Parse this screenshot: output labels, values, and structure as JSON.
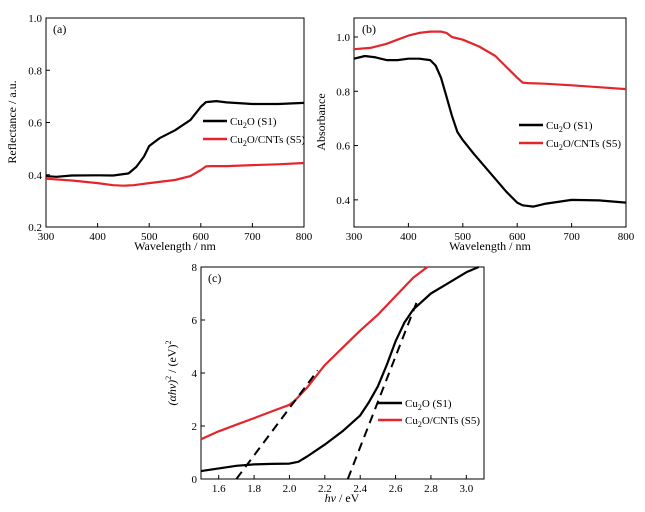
{
  "colors": {
    "black_series": "#000000",
    "red_series": "#e3262c",
    "dash": "#000000"
  },
  "chart_data": [
    {
      "type": "line",
      "panel_tag": "(a)",
      "xlabel": "Wavelength / nm",
      "ylabel": "Reflectance / a.u.",
      "xlim": [
        300,
        800
      ],
      "ylim": [
        0.2,
        1.0
      ],
      "xticks": [
        300,
        400,
        500,
        600,
        700,
        800
      ],
      "yticks": [
        0.2,
        0.4,
        0.6,
        0.8,
        1.0
      ],
      "ytick_labels": [
        "0.2",
        "0.4",
        "0.6",
        "0.8",
        "1.0"
      ],
      "legend_position": "right-middle",
      "series": [
        {
          "name_main": "Cu",
          "name_sub": "2",
          "name_tail": "O (S1)",
          "color": "#000000",
          "x": [
            300,
            320,
            350,
            400,
            430,
            460,
            475,
            490,
            500,
            520,
            550,
            580,
            600,
            610,
            630,
            650,
            700,
            750,
            800
          ],
          "y": [
            0.395,
            0.392,
            0.397,
            0.398,
            0.397,
            0.405,
            0.43,
            0.47,
            0.51,
            0.54,
            0.57,
            0.61,
            0.66,
            0.678,
            0.682,
            0.677,
            0.671,
            0.671,
            0.675
          ]
        },
        {
          "name_main": "Cu",
          "name_sub": "2",
          "name_tail": "O/CNTs (S5)",
          "color": "#e3262c",
          "x": [
            300,
            350,
            400,
            430,
            450,
            470,
            500,
            550,
            580,
            600,
            610,
            620,
            650,
            700,
            750,
            800
          ],
          "y": [
            0.385,
            0.378,
            0.368,
            0.36,
            0.358,
            0.36,
            0.368,
            0.38,
            0.395,
            0.418,
            0.432,
            0.433,
            0.433,
            0.437,
            0.44,
            0.445
          ]
        }
      ]
    },
    {
      "type": "line",
      "panel_tag": "(b)",
      "xlabel": "Wavelength / nm",
      "ylabel": "Absorbance",
      "xlim": [
        300,
        800
      ],
      "ylim": [
        0.3,
        1.07
      ],
      "xticks": [
        300,
        400,
        500,
        600,
        700,
        800
      ],
      "yticks": [
        0.4,
        0.6,
        0.8,
        1.0
      ],
      "ytick_labels": [
        "0.4",
        "0.6",
        "0.8",
        "1.0"
      ],
      "legend_position": "right-middle",
      "series": [
        {
          "name_main": "Cu",
          "name_sub": "2",
          "name_tail": "O (S1)",
          "color": "#000000",
          "x": [
            300,
            320,
            340,
            360,
            380,
            400,
            420,
            440,
            450,
            460,
            470,
            480,
            490,
            500,
            520,
            550,
            580,
            600,
            610,
            630,
            650,
            700,
            750,
            800
          ],
          "y": [
            0.92,
            0.93,
            0.925,
            0.915,
            0.915,
            0.92,
            0.92,
            0.915,
            0.895,
            0.85,
            0.78,
            0.71,
            0.65,
            0.62,
            0.57,
            0.5,
            0.43,
            0.39,
            0.38,
            0.375,
            0.385,
            0.4,
            0.398,
            0.39
          ]
        },
        {
          "name_main": "Cu",
          "name_sub": "2",
          "name_tail": "O/CNTs (S5)",
          "color": "#e3262c",
          "x": [
            300,
            330,
            360,
            380,
            400,
            420,
            440,
            460,
            470,
            480,
            500,
            530,
            560,
            580,
            600,
            610,
            620,
            650,
            700,
            750,
            800
          ],
          "y": [
            0.955,
            0.96,
            0.975,
            0.99,
            1.005,
            1.015,
            1.02,
            1.02,
            1.015,
            1.0,
            0.99,
            0.965,
            0.93,
            0.89,
            0.85,
            0.832,
            0.83,
            0.828,
            0.822,
            0.815,
            0.808
          ]
        }
      ]
    },
    {
      "type": "line",
      "panel_tag": "(c)",
      "xlabel_italic": "hν",
      "xlabel_tail": " / eV",
      "ylabel_main": "(αhν)",
      "ylabel_sup": "2",
      "ylabel_tail": " / (eV)",
      "ylabel_sup2": "2",
      "xlim": [
        1.5,
        3.1
      ],
      "ylim": [
        0,
        8
      ],
      "xticks": [
        1.6,
        1.8,
        2.0,
        2.2,
        2.4,
        2.6,
        2.8,
        3.0
      ],
      "xtick_labels": [
        "1.6",
        "1.8",
        "2.0",
        "2.2",
        "2.4",
        "2.6",
        "2.8",
        "3.0"
      ],
      "yticks": [
        0,
        2,
        4,
        6,
        8
      ],
      "ytick_labels": [
        "0",
        "2",
        "4",
        "6",
        "8"
      ],
      "legend_position": "right-middle",
      "series": [
        {
          "name_main": "Cu",
          "name_sub": "2",
          "name_tail": "O (S1)",
          "color": "#000000",
          "x": [
            1.5,
            1.6,
            1.7,
            1.8,
            1.9,
            2.0,
            2.05,
            2.1,
            2.2,
            2.3,
            2.4,
            2.45,
            2.5,
            2.55,
            2.6,
            2.65,
            2.7,
            2.8,
            2.9,
            3.0,
            3.07
          ],
          "y": [
            0.3,
            0.4,
            0.5,
            0.55,
            0.57,
            0.58,
            0.65,
            0.85,
            1.3,
            1.8,
            2.4,
            2.9,
            3.5,
            4.3,
            5.2,
            5.9,
            6.4,
            7.0,
            7.4,
            7.8,
            8.0
          ]
        },
        {
          "name_main": "Cu",
          "name_sub": "2",
          "name_tail": "O/CNTs (S5)",
          "color": "#e3262c",
          "x": [
            1.5,
            1.6,
            1.7,
            1.8,
            1.9,
            2.0,
            2.03,
            2.1,
            2.2,
            2.3,
            2.4,
            2.5,
            2.6,
            2.7,
            2.78
          ],
          "y": [
            1.5,
            1.8,
            2.05,
            2.3,
            2.55,
            2.8,
            2.95,
            3.45,
            4.3,
            4.95,
            5.6,
            6.2,
            6.9,
            7.6,
            8.0
          ]
        }
      ],
      "tangent_lines": [
        {
          "x": [
            1.7,
            2.16
          ],
          "y": [
            0,
            4.1
          ]
        },
        {
          "x": [
            2.33,
            2.73
          ],
          "y": [
            0,
            6.85
          ]
        }
      ]
    }
  ]
}
